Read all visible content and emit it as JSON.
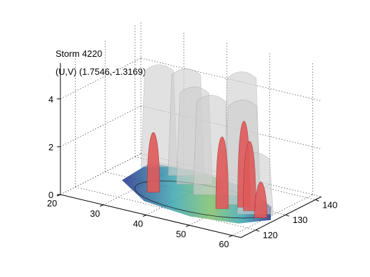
{
  "chart_data": {
    "type": "surface3d",
    "title": "Storm 4220",
    "subtitle": "(U,V) (1.7546,-1.3169)",
    "xlabel": "",
    "ylabel": "",
    "zlabel": "",
    "x_ticks": [
      "20",
      "30",
      "40",
      "50",
      "60"
    ],
    "y_ticks": [
      "120",
      "130",
      "140"
    ],
    "z_ticks": [
      "0",
      "2",
      "4"
    ],
    "xlim": [
      20,
      62
    ],
    "ylim": [
      115,
      142
    ],
    "zlim": [
      0,
      5.5
    ],
    "grid": true,
    "storm_cells": [
      {
        "x": 27,
        "y": 138,
        "height": 4.3
      },
      {
        "x": 34,
        "y": 137,
        "height": 4.5
      },
      {
        "x": 38,
        "y": 134,
        "height": 4.1
      },
      {
        "x": 44,
        "y": 131,
        "height": 4.2
      },
      {
        "x": 49,
        "y": 134,
        "height": 5.2
      },
      {
        "x": 52,
        "y": 130,
        "height": 4.4
      },
      {
        "x": 57,
        "y": 127,
        "height": 2.6
      }
    ],
    "core_peaks": [
      {
        "x": 34,
        "y": 126,
        "height": 2.5
      },
      {
        "x": 50,
        "y": 126,
        "height": 3.0
      },
      {
        "x": 53,
        "y": 129,
        "height": 3.6
      },
      {
        "x": 55,
        "y": 128,
        "height": 2.9
      },
      {
        "x": 59,
        "y": 126,
        "height": 1.5
      }
    ],
    "colors": {
      "shell": "#cfcfcf",
      "core": "#e05a5a",
      "base_low": "#1f2f8a",
      "base_mid": "#3aa6b0",
      "base_high": "#7fc06a"
    }
  }
}
